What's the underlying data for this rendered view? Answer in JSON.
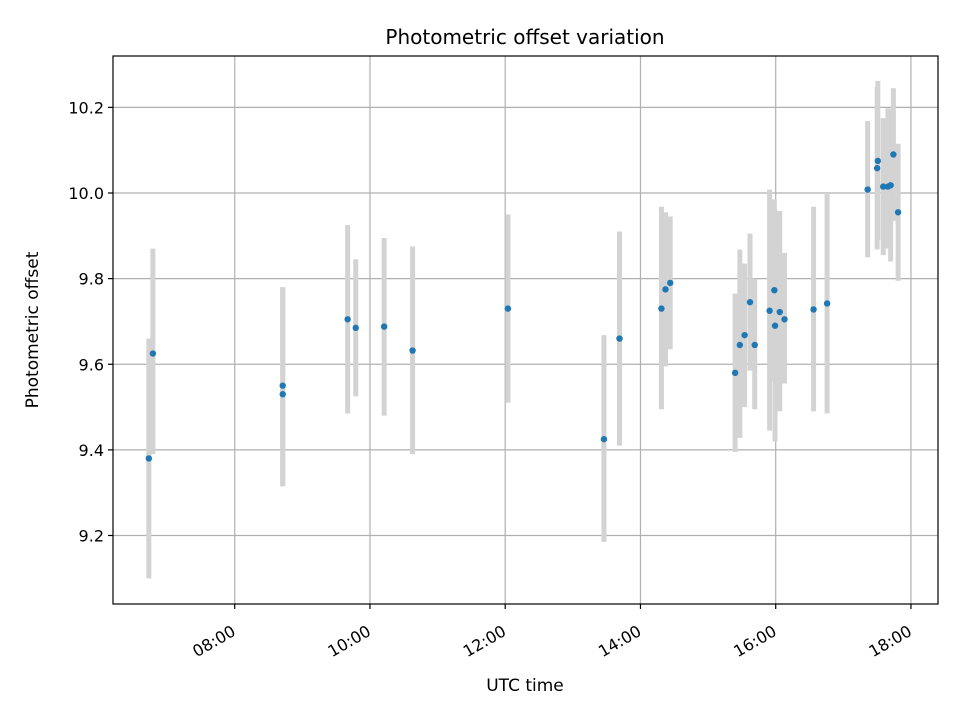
{
  "chart_data": {
    "type": "scatter",
    "title": "Photometric offset variation",
    "xlabel": "UTC time",
    "ylabel": "Photometric offset",
    "x_unit": "hours UTC",
    "xlim": [
      6.2,
      18.4
    ],
    "ylim": [
      9.04,
      10.32
    ],
    "xticks": [
      {
        "value": 8,
        "label": "08:00"
      },
      {
        "value": 10,
        "label": "10:00"
      },
      {
        "value": 12,
        "label": "12:00"
      },
      {
        "value": 14,
        "label": "14:00"
      },
      {
        "value": 16,
        "label": "16:00"
      },
      {
        "value": 18,
        "label": "18:00"
      }
    ],
    "yticks": [
      {
        "value": 9.2,
        "label": "9.2"
      },
      {
        "value": 9.4,
        "label": "9.4"
      },
      {
        "value": 9.6,
        "label": "9.6"
      },
      {
        "value": 9.8,
        "label": "9.8"
      },
      {
        "value": 10.0,
        "label": "10.0"
      },
      {
        "value": 10.2,
        "label": "10.2"
      }
    ],
    "grid": true,
    "marker_color": "#1f77b4",
    "errorbar_color": "#d3d3d3",
    "points": [
      {
        "x": 6.73,
        "y": 9.38,
        "low": 9.1,
        "high": 9.66
      },
      {
        "x": 6.79,
        "y": 9.625,
        "low": 9.39,
        "high": 9.87
      },
      {
        "x": 8.71,
        "y": 9.55,
        "low": 9.315,
        "high": 9.78
      },
      {
        "x": 8.71,
        "y": 9.53,
        "low": 9.315,
        "high": 9.78
      },
      {
        "x": 9.67,
        "y": 9.705,
        "low": 9.485,
        "high": 9.925
      },
      {
        "x": 9.79,
        "y": 9.685,
        "low": 9.525,
        "high": 9.845
      },
      {
        "x": 10.21,
        "y": 9.688,
        "low": 9.48,
        "high": 9.895
      },
      {
        "x": 10.63,
        "y": 9.632,
        "low": 9.39,
        "high": 9.875
      },
      {
        "x": 12.04,
        "y": 9.73,
        "low": 9.51,
        "high": 9.95
      },
      {
        "x": 13.46,
        "y": 9.425,
        "low": 9.185,
        "high": 9.668
      },
      {
        "x": 13.69,
        "y": 9.66,
        "low": 9.41,
        "high": 9.91
      },
      {
        "x": 14.31,
        "y": 9.73,
        "low": 9.495,
        "high": 9.968
      },
      {
        "x": 14.37,
        "y": 9.775,
        "low": 9.595,
        "high": 9.955
      },
      {
        "x": 14.44,
        "y": 9.79,
        "low": 9.635,
        "high": 9.945
      },
      {
        "x": 15.4,
        "y": 9.58,
        "low": 9.395,
        "high": 9.765
      },
      {
        "x": 15.47,
        "y": 9.645,
        "low": 9.428,
        "high": 9.868
      },
      {
        "x": 15.54,
        "y": 9.668,
        "low": 9.5,
        "high": 9.835
      },
      {
        "x": 15.62,
        "y": 9.745,
        "low": 9.585,
        "high": 9.905
      },
      {
        "x": 15.69,
        "y": 9.645,
        "low": 9.495,
        "high": 9.8
      },
      {
        "x": 15.91,
        "y": 9.725,
        "low": 9.445,
        "high": 10.008
      },
      {
        "x": 15.98,
        "y": 9.773,
        "low": 9.56,
        "high": 9.985
      },
      {
        "x": 15.99,
        "y": 9.69,
        "low": 9.42,
        "high": 9.96
      },
      {
        "x": 16.06,
        "y": 9.722,
        "low": 9.49,
        "high": 9.958
      },
      {
        "x": 16.13,
        "y": 9.705,
        "low": 9.555,
        "high": 9.86
      },
      {
        "x": 16.56,
        "y": 9.728,
        "low": 9.49,
        "high": 9.968
      },
      {
        "x": 16.76,
        "y": 9.742,
        "low": 9.485,
        "high": 10.0
      },
      {
        "x": 17.36,
        "y": 10.008,
        "low": 9.85,
        "high": 10.168
      },
      {
        "x": 17.5,
        "y": 10.058,
        "low": 9.868,
        "high": 10.248
      },
      {
        "x": 17.51,
        "y": 10.075,
        "low": 9.89,
        "high": 10.262
      },
      {
        "x": 17.59,
        "y": 10.015,
        "low": 9.855,
        "high": 10.175
      },
      {
        "x": 17.66,
        "y": 10.015,
        "low": 9.87,
        "high": 10.198
      },
      {
        "x": 17.7,
        "y": 10.018,
        "low": 9.84,
        "high": 10.195
      },
      {
        "x": 17.74,
        "y": 10.09,
        "low": 9.935,
        "high": 10.245
      },
      {
        "x": 17.81,
        "y": 9.955,
        "low": 9.795,
        "high": 10.115
      }
    ]
  }
}
